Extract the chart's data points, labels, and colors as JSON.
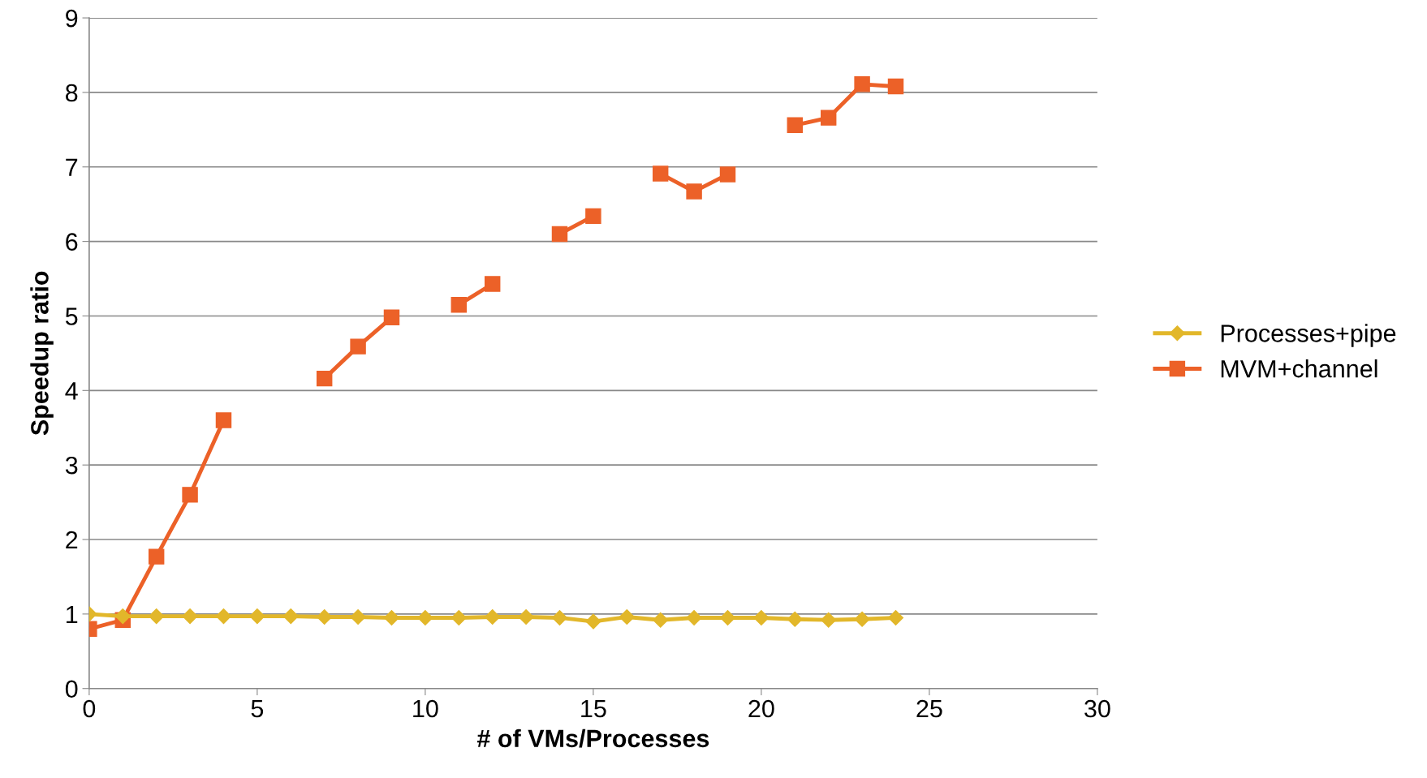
{
  "chart_data": {
    "type": "line",
    "xlabel": "# of VMs/Processes",
    "ylabel": "Speedup ratio",
    "x": [
      0,
      1,
      2,
      3,
      4,
      5,
      6,
      7,
      8,
      9,
      10,
      11,
      12,
      13,
      14,
      15,
      16,
      17,
      18,
      19,
      20,
      21,
      22,
      23,
      24
    ],
    "series": [
      {
        "name": "Processes+pipe",
        "color": "#e2b72a",
        "marker": "diamond",
        "values": [
          1.0,
          0.97,
          0.97,
          0.97,
          0.97,
          0.97,
          0.97,
          0.96,
          0.96,
          0.95,
          0.95,
          0.95,
          0.96,
          0.96,
          0.95,
          0.9,
          0.96,
          0.92,
          0.95,
          0.95,
          0.95,
          0.93,
          0.92,
          0.93,
          0.95
        ]
      },
      {
        "name": "MVM+channel",
        "color": "#ec6128",
        "marker": "square",
        "values": [
          0.8,
          0.92,
          1.77,
          2.6,
          3.6,
          null,
          null,
          4.16,
          4.59,
          4.98,
          null,
          5.15,
          5.43,
          null,
          6.1,
          6.34,
          null,
          6.91,
          6.67,
          6.9,
          null,
          7.56,
          7.66,
          8.11,
          8.08
        ]
      }
    ],
    "xlim": [
      0,
      30
    ],
    "xticks": [
      0,
      5,
      10,
      15,
      20,
      25,
      30
    ],
    "ylim": [
      0,
      9
    ],
    "yticks": [
      0,
      1,
      2,
      3,
      4,
      5,
      6,
      7,
      8,
      9
    ],
    "grid": "y",
    "legend": "right",
    "line_style": "solid"
  }
}
